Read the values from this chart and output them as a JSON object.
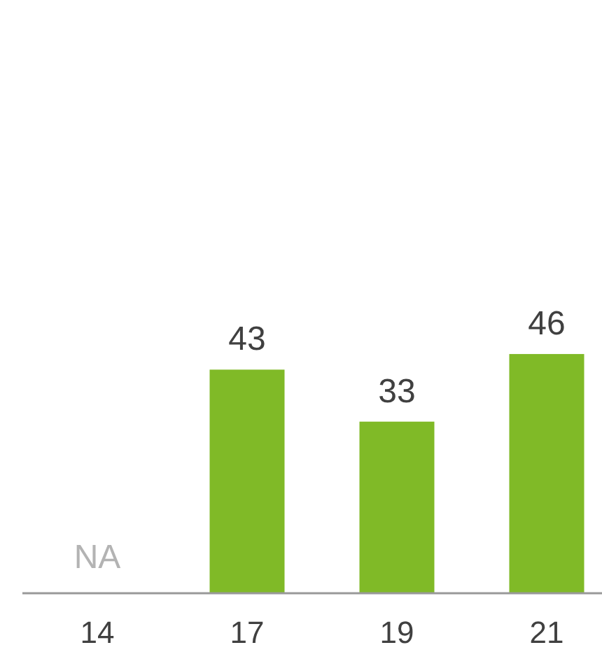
{
  "chart_data": {
    "type": "bar",
    "categories": [
      "14",
      "17",
      "19",
      "21"
    ],
    "values": [
      null,
      43,
      33,
      46
    ],
    "color": "#80ba27",
    "value_labels": [
      "NA",
      "43",
      "33",
      "46"
    ]
  }
}
